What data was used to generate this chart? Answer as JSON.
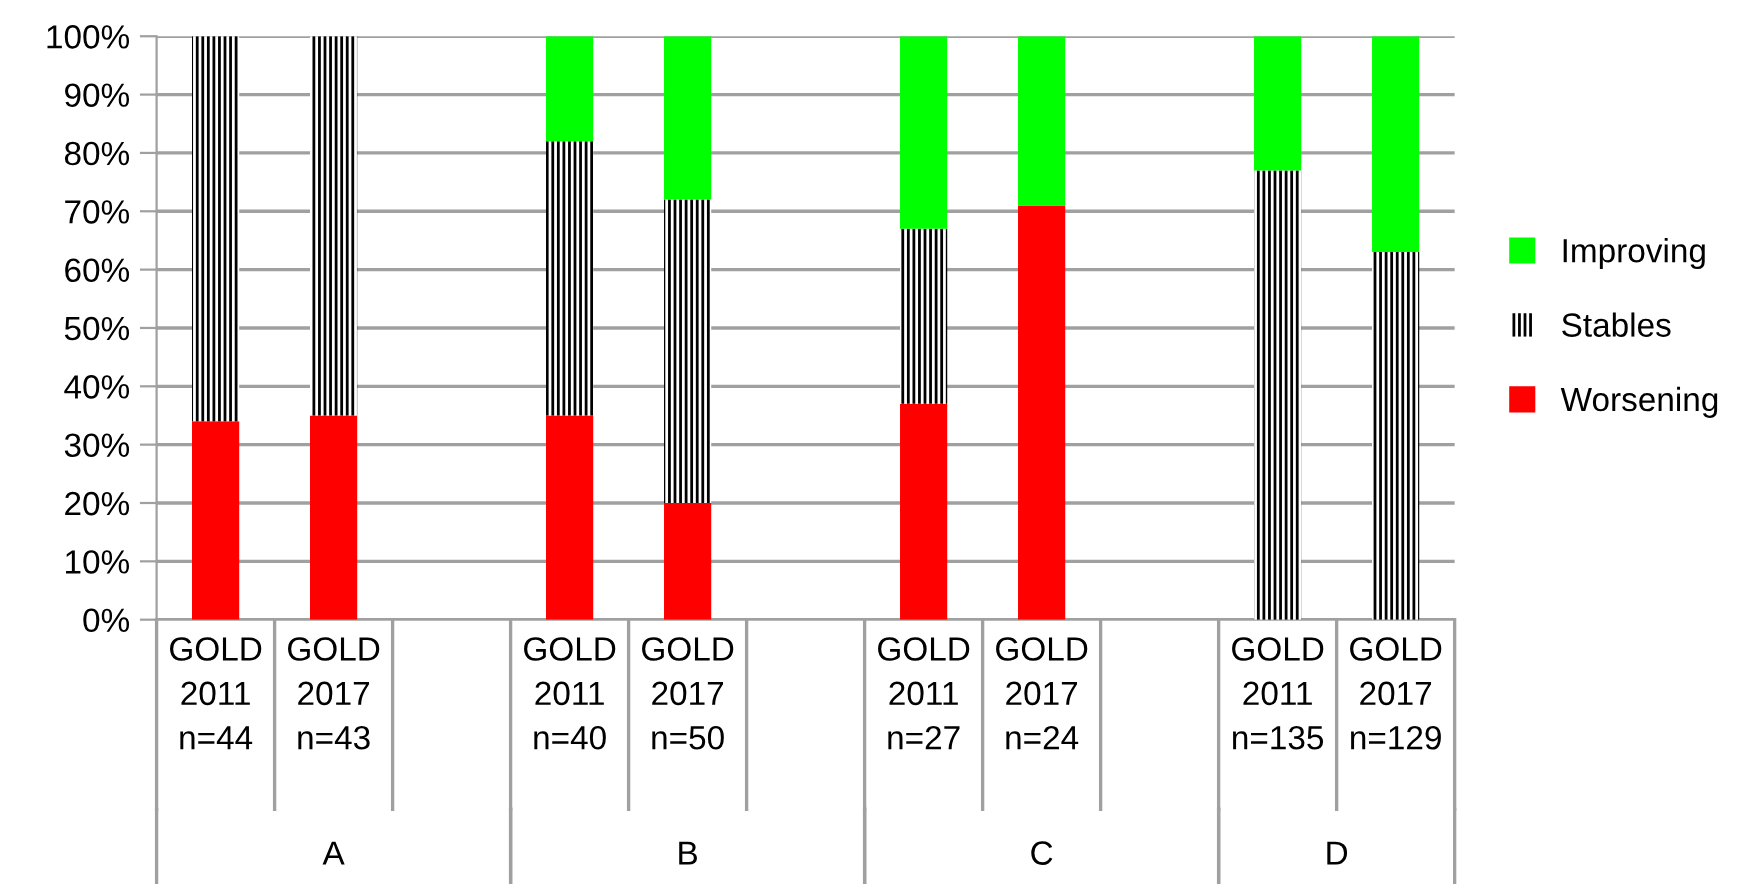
{
  "chart_data": {
    "type": "bar",
    "stacked": true,
    "categories": [
      "GOLD\n2011\nn=44",
      "GOLD\n2017\nn=43",
      null,
      "GOLD\n2011\nn=40",
      "GOLD\n2017\nn=50",
      null,
      "GOLD\n2011\nn=27",
      "GOLD\n2017\nn=24",
      null,
      "GOLD\n2011\nn=135",
      "GOLD\n2017\nn=129"
    ],
    "series": [
      {
        "name": "Worsening",
        "color": "#ff0000",
        "values": [
          34,
          35,
          null,
          35,
          20,
          null,
          37,
          71,
          null,
          0,
          0
        ]
      },
      {
        "name": "Stables",
        "color": "#000000",
        "values": [
          66,
          65,
          null,
          47,
          52,
          null,
          30,
          0,
          null,
          77,
          63
        ]
      },
      {
        "name": "Improving",
        "color": "#00ff00",
        "values": [
          0,
          0,
          null,
          18,
          28,
          null,
          33,
          29,
          null,
          23,
          37
        ]
      }
    ],
    "annotations": [
      "A",
      "B",
      "C",
      "D"
    ],
    "ylim": [
      0,
      100
    ],
    "yticks": [
      {
        "value": 0,
        "label": "0%"
      },
      {
        "value": 10,
        "label": "10%"
      },
      {
        "value": 20,
        "label": "20%"
      },
      {
        "value": 30,
        "label": "30%"
      },
      {
        "value": 40,
        "label": "40%"
      },
      {
        "value": 50,
        "label": "50%"
      },
      {
        "value": 60,
        "label": "60%"
      },
      {
        "value": 70,
        "label": "70%"
      },
      {
        "value": 80,
        "label": "80%"
      },
      {
        "value": 90,
        "label": "90%"
      },
      {
        "value": 100,
        "label": "100%"
      }
    ],
    "grid": "y",
    "legend": "right"
  }
}
